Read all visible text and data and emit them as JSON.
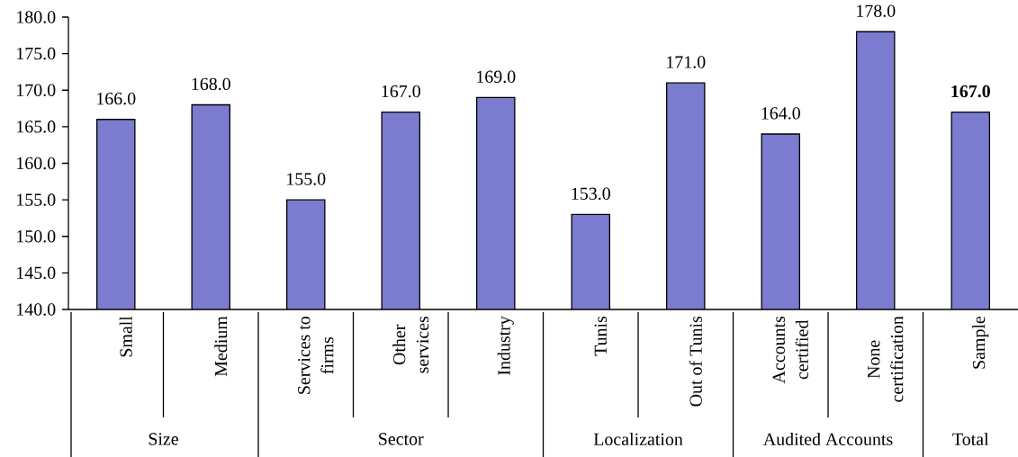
{
  "chart_data": {
    "type": "bar",
    "categories": [
      "Small",
      "Medium",
      "Services to firms",
      "Other services",
      "Industry",
      "Tunis",
      "Out of Tunis",
      "Accounts certified",
      "None certification",
      "Sample"
    ],
    "values": [
      166,
      168,
      155,
      167,
      169,
      153,
      171,
      164,
      178,
      167
    ],
    "value_labels": [
      "166.0",
      "168.0",
      "155.0",
      "167.0",
      "169.0",
      "153.0",
      "171.0",
      "164.0",
      "178.0",
      "**167.0**"
    ],
    "color": "#7b7bcf",
    "ylim": [
      140,
      180
    ],
    "yticks": [
      {
        "value": 140,
        "label": "140.0"
      },
      {
        "value": 145,
        "label": "145.0"
      },
      {
        "value": 150,
        "label": "150.0"
      },
      {
        "value": 155,
        "label": "155.0"
      },
      {
        "value": 160,
        "label": "160.0"
      },
      {
        "value": 165,
        "label": "165.0"
      },
      {
        "value": 170,
        "label": "170.0"
      },
      {
        "value": 175,
        "label": "175.0"
      },
      {
        "value": 180,
        "label": "180.0"
      }
    ],
    "annotations": [
      "Size",
      "Sector",
      "Localization",
      "Audited Accounts",
      "Total"
    ]
  }
}
